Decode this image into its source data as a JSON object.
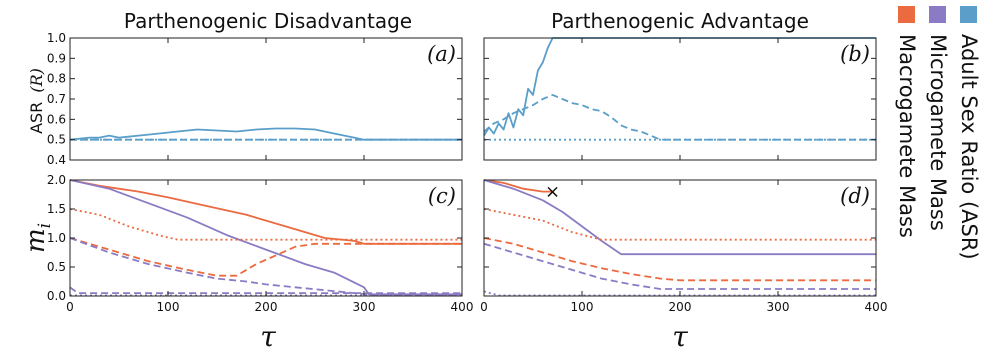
{
  "figure": {
    "titles": {
      "left": "Parthenogenic Disadvantage",
      "right": "Parthenogenic Advantage"
    },
    "y_label_top": "ASR",
    "y_label_top_sym": "(R)",
    "y_label_bottom": "m",
    "y_label_bottom_sub": "i",
    "x_label": "τ",
    "panel_labels": [
      "(a)",
      "(b)",
      "(c)",
      "(d)"
    ]
  },
  "legend": [
    {
      "label": "Adult Sex Ratio (ASR)",
      "color": "#5a9ec9"
    },
    {
      "label": "Microgamete Mass",
      "color": "#8b7bc4"
    },
    {
      "label": "Macrogamete Mass",
      "color": "#eb6a3f"
    }
  ],
  "chart_data": [
    {
      "id": "a",
      "type": "line",
      "ylabel": "ASR (R)",
      "xlim": [
        0,
        400
      ],
      "ylim": [
        0.4,
        1.0
      ],
      "xticks": [
        "0",
        "100",
        "200",
        "300",
        "400"
      ],
      "yticks": [
        "0.4",
        "0.5",
        "0.6",
        "0.7",
        "0.8",
        "0.9",
        "1.0"
      ],
      "series": [
        {
          "color": "#5a9ec9",
          "dash": "solid",
          "x": [
            0,
            20,
            30,
            40,
            50,
            70,
            90,
            110,
            130,
            150,
            170,
            190,
            210,
            230,
            250,
            270,
            290,
            300,
            400
          ],
          "y": [
            0.5,
            0.51,
            0.51,
            0.52,
            0.51,
            0.52,
            0.53,
            0.54,
            0.55,
            0.545,
            0.54,
            0.55,
            0.555,
            0.555,
            0.55,
            0.53,
            0.51,
            0.5,
            0.5
          ]
        },
        {
          "color": "#5a9ec9",
          "dash": "dashed",
          "x": [
            0,
            400
          ],
          "y": [
            0.5,
            0.5
          ]
        },
        {
          "color": "#5a9ec9",
          "dash": "dotted",
          "x": [
            0,
            400
          ],
          "y": [
            0.5,
            0.5
          ]
        }
      ]
    },
    {
      "id": "b",
      "type": "line",
      "ylabel": "",
      "xlim": [
        0,
        400
      ],
      "ylim": [
        0.4,
        1.0
      ],
      "xticks": [
        "0",
        "100",
        "200",
        "300",
        "400"
      ],
      "yticks": [],
      "series": [
        {
          "color": "#5a9ec9",
          "dash": "solid",
          "x": [
            0,
            5,
            10,
            15,
            20,
            25,
            30,
            35,
            40,
            45,
            50,
            55,
            60,
            65,
            70,
            400
          ],
          "y": [
            0.52,
            0.56,
            0.53,
            0.58,
            0.55,
            0.63,
            0.56,
            0.65,
            0.62,
            0.75,
            0.72,
            0.84,
            0.88,
            0.95,
            1.0,
            1.0
          ]
        },
        {
          "color": "#5a9ec9",
          "dash": "dashed",
          "x": [
            0,
            10,
            20,
            30,
            40,
            50,
            60,
            70,
            80,
            90,
            100,
            110,
            120,
            130,
            140,
            150,
            160,
            170,
            180,
            400
          ],
          "y": [
            0.54,
            0.58,
            0.6,
            0.63,
            0.65,
            0.67,
            0.7,
            0.72,
            0.7,
            0.68,
            0.67,
            0.65,
            0.64,
            0.61,
            0.57,
            0.55,
            0.54,
            0.52,
            0.5,
            0.5
          ]
        },
        {
          "color": "#5a9ec9",
          "dash": "dotted",
          "x": [
            0,
            400
          ],
          "y": [
            0.5,
            0.5
          ]
        }
      ]
    },
    {
      "id": "c",
      "type": "line",
      "ylabel": "m_i",
      "xlim": [
        0,
        400
      ],
      "ylim": [
        0.0,
        2.0
      ],
      "xticks": [
        "0",
        "100",
        "200",
        "300",
        "400"
      ],
      "yticks": [
        "0.0",
        "0.5",
        "1.0",
        "1.5",
        "2.0"
      ],
      "series": [
        {
          "color": "#eb6a3f",
          "dash": "solid",
          "x": [
            0,
            30,
            70,
            100,
            140,
            180,
            220,
            260,
            290,
            300,
            400
          ],
          "y": [
            2.0,
            1.9,
            1.8,
            1.7,
            1.55,
            1.4,
            1.2,
            1.0,
            0.95,
            0.9,
            0.9
          ]
        },
        {
          "color": "#8b7bc4",
          "dash": "solid",
          "x": [
            0,
            40,
            80,
            120,
            160,
            200,
            240,
            270,
            300,
            305,
            400
          ],
          "y": [
            2.0,
            1.85,
            1.6,
            1.35,
            1.05,
            0.8,
            0.55,
            0.4,
            0.15,
            0.03,
            0.03
          ]
        },
        {
          "color": "#eb6a3f",
          "dash": "dotted",
          "x": [
            0,
            30,
            60,
            90,
            110,
            400
          ],
          "y": [
            1.5,
            1.4,
            1.2,
            1.05,
            0.97,
            0.97
          ]
        },
        {
          "color": "#eb6a3f",
          "dash": "dashed",
          "x": [
            0,
            40,
            80,
            120,
            150,
            170,
            190,
            210,
            230,
            250,
            300,
            400
          ],
          "y": [
            1.0,
            0.8,
            0.6,
            0.45,
            0.35,
            0.35,
            0.55,
            0.7,
            0.85,
            0.9,
            0.9,
            0.9
          ]
        },
        {
          "color": "#8b7bc4",
          "dash": "dashed",
          "x": [
            0,
            40,
            80,
            120,
            150,
            180,
            200,
            230,
            260,
            290,
            310,
            400
          ],
          "y": [
            1.0,
            0.75,
            0.55,
            0.4,
            0.3,
            0.25,
            0.2,
            0.15,
            0.1,
            0.05,
            0.02,
            0.02
          ]
        },
        {
          "color": "#8b7bc4",
          "dash": "dashed",
          "x": [
            0,
            8,
            400
          ],
          "y": [
            0.15,
            0.05,
            0.05
          ]
        },
        {
          "color": "#8b7bc4",
          "dash": "dotted",
          "x": [
            0,
            400
          ],
          "y": [
            0.01,
            0.01
          ]
        }
      ]
    },
    {
      "id": "d",
      "type": "line",
      "ylabel": "",
      "xlim": [
        0,
        400
      ],
      "ylim": [
        0.0,
        2.0
      ],
      "xticks": [
        "0",
        "100",
        "200",
        "300",
        "400"
      ],
      "yticks": [],
      "marker": {
        "symbol": "×",
        "x": 70,
        "y": 1.8,
        "color": "#111111"
      },
      "series": [
        {
          "color": "#eb6a3f",
          "dash": "solid",
          "x": [
            0,
            20,
            40,
            60,
            70
          ],
          "y": [
            2.0,
            1.95,
            1.85,
            1.8,
            1.8
          ]
        },
        {
          "color": "#8b7bc4",
          "dash": "solid",
          "x": [
            0,
            30,
            60,
            80,
            100,
            120,
            140,
            400
          ],
          "y": [
            2.0,
            1.85,
            1.65,
            1.45,
            1.2,
            0.95,
            0.72,
            0.72
          ]
        },
        {
          "color": "#eb6a3f",
          "dash": "dotted",
          "x": [
            0,
            30,
            60,
            90,
            120,
            400
          ],
          "y": [
            1.5,
            1.4,
            1.3,
            1.1,
            0.97,
            0.97
          ]
        },
        {
          "color": "#eb6a3f",
          "dash": "dashed",
          "x": [
            0,
            30,
            60,
            90,
            120,
            150,
            180,
            200,
            400
          ],
          "y": [
            1.0,
            0.9,
            0.75,
            0.6,
            0.48,
            0.38,
            0.3,
            0.27,
            0.27
          ]
        },
        {
          "color": "#8b7bc4",
          "dash": "dashed",
          "x": [
            0,
            30,
            60,
            90,
            120,
            150,
            180,
            400
          ],
          "y": [
            0.9,
            0.75,
            0.6,
            0.45,
            0.3,
            0.2,
            0.12,
            0.12
          ]
        },
        {
          "color": "#8b7bc4",
          "dash": "dotted",
          "x": [
            0,
            15,
            400
          ],
          "y": [
            0.08,
            0.01,
            0.01
          ]
        }
      ]
    }
  ]
}
